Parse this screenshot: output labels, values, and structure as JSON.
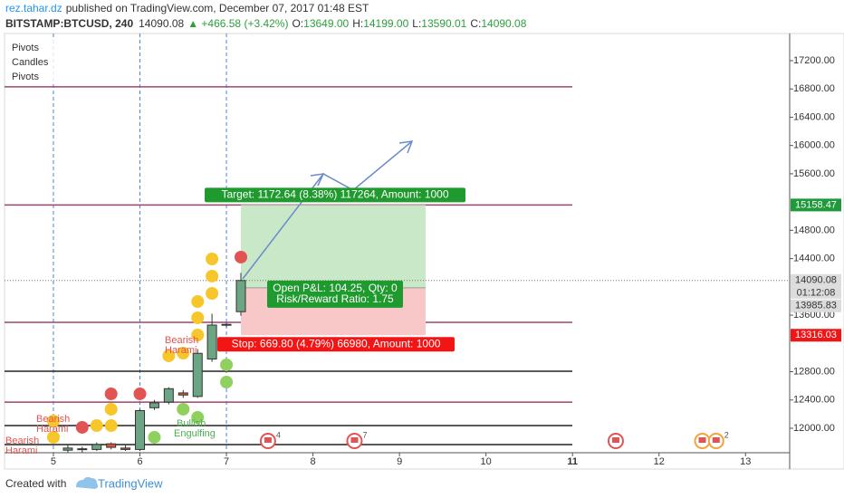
{
  "header": {
    "author": "rez.tahar.dz",
    "published": "published on TradingView.com, December 07, 2017 01:48 EST",
    "symbol": "BITSTAMP:BTCUSD, 240",
    "last": "14090.08",
    "change": "▲ +466.58 (+3.42%)",
    "ohlc": [
      {
        "key": "O:",
        "value": "13649.00"
      },
      {
        "key": "H:",
        "value": "14199.00"
      },
      {
        "key": "L:",
        "value": "13590.01"
      },
      {
        "key": "C:",
        "value": "14090.08"
      }
    ]
  },
  "legend": [
    "Pivots",
    "Candles",
    "Pivots"
  ],
  "chart_data": {
    "type": "candlestick",
    "x": [
      5.167,
      5.333,
      5.5,
      5.667,
      5.833,
      6.0,
      6.167,
      6.333,
      6.5,
      6.667,
      6.833,
      7.0,
      7.167
    ],
    "open": [
      11690,
      11700,
      11700,
      11780,
      11720,
      11700,
      12290,
      12370,
      12500,
      12450,
      12980,
      13460,
      13649
    ],
    "high": [
      11760,
      11740,
      11800,
      11800,
      11760,
      12270,
      12400,
      12580,
      12540,
      13120,
      13620,
      13490,
      14199
    ],
    "low": [
      11650,
      11660,
      11680,
      11700,
      11680,
      11680,
      12260,
      12340,
      12430,
      12430,
      12940,
      13430,
      13590.01
    ],
    "close": [
      11720,
      11710,
      11770,
      11730,
      11700,
      12250,
      12360,
      12560,
      12470,
      13060,
      13460,
      13470,
      14090.08
    ],
    "up_color": "#6ba583",
    "down_color": "#d75442",
    "xlim": [
      4.435,
      13.51
    ],
    "ylim": [
      11654,
      17584
    ],
    "xticks": [
      5,
      6,
      7,
      8,
      9,
      10,
      11,
      12,
      13
    ],
    "yticks": [
      {
        "value": 12000,
        "label": "12000.00"
      },
      {
        "value": 12400,
        "label": "12400.00"
      },
      {
        "value": 12800,
        "label": "12800.00"
      },
      {
        "value": 13600,
        "label": "13600.00"
      },
      {
        "value": 14400,
        "label": "14400.00"
      },
      {
        "value": 14800,
        "label": "14800.00"
      },
      {
        "value": 15600,
        "label": "15600.00"
      },
      {
        "value": 16000,
        "label": "16000.00"
      },
      {
        "value": 16400,
        "label": "16400.00"
      },
      {
        "value": 16800,
        "label": "16800.00"
      },
      {
        "value": 17200,
        "label": "17200.00"
      }
    ],
    "vlines": [
      5,
      6,
      7
    ],
    "hlines": [
      {
        "value": 16830,
        "color": "#a0436e"
      },
      {
        "value": 15158.47,
        "color": "#a0436e"
      },
      {
        "value": 13498,
        "color": "#a0436e"
      },
      {
        "value": 12370,
        "color": "#a0436e"
      },
      {
        "value": 12807,
        "color": "#222222"
      },
      {
        "value": 12038,
        "color": "#222222"
      },
      {
        "value": 11770,
        "color": "#222222"
      }
    ],
    "dots": [
      {
        "color": "#f7c62a",
        "x": [
          5.0,
          5.0,
          5.5,
          5.667,
          5.667,
          6.333,
          6.5,
          6.667,
          6.667,
          6.667,
          6.833,
          6.833,
          6.833
        ],
        "values": [
          12102,
          11872,
          12038,
          12269,
          12038,
          13025,
          13063,
          13319,
          13563,
          13793,
          13908,
          14152,
          14395
        ]
      },
      {
        "color": "#e35353",
        "x": [
          5.333,
          5.667,
          6.0,
          7.167
        ],
        "values": [
          12013,
          12487,
          12487,
          14421
        ]
      },
      {
        "color": "#8fd05f",
        "x": [
          6.167,
          6.5,
          6.667,
          7.0,
          7.0
        ],
        "values": [
          11872,
          12269,
          12154,
          12897,
          12653
        ]
      }
    ],
    "position": {
      "entry": 13985.83,
      "target": 15158.47,
      "stop": 13316.03,
      "target_label": "Target: 1172.64 (8.38%) 117264, Amount: 1000",
      "pnl_label": "Open P&L: 104.25, Qty: 0",
      "rr_label": "Risk/Reward Ratio: 1.75",
      "stop_label": "Stop: 669.80 (4.79%) 66980, Amount: 1000"
    },
    "price_labels": [
      {
        "value": 15158.47,
        "label": "15158.47",
        "color": "#1f9a3b"
      },
      {
        "value": 14090.08,
        "label": "14090.08",
        "color": "#dcdcdc"
      },
      {
        "value": 13985.83,
        "label": "13985.83",
        "color": "#dcdcdc"
      },
      {
        "value": 13316.03,
        "label": "13316.03",
        "color": "#f21515"
      }
    ],
    "countdown": "01:12:08",
    "patterns": [
      {
        "lines": [
          "Bearish",
          "Harami"
        ],
        "color": "#e35353"
      },
      {
        "lines": [
          "Bearish",
          "Harami"
        ],
        "color": "#e35353"
      },
      {
        "lines": [
          "Bearish",
          "Harami"
        ],
        "color": "#e35353"
      },
      {
        "lines": [
          "Bullish",
          "Engulfing"
        ],
        "color": "#4caf50"
      }
    ],
    "events": [
      {
        "x": 7.48,
        "label": "4"
      },
      {
        "x": 8.48,
        "label": "7"
      },
      {
        "x": 11.5
      },
      {
        "x": 12.5
      },
      {
        "x": 12.66,
        "label": "2"
      }
    ]
  },
  "footer": {
    "created": "Created with",
    "brand": "TradingView"
  }
}
